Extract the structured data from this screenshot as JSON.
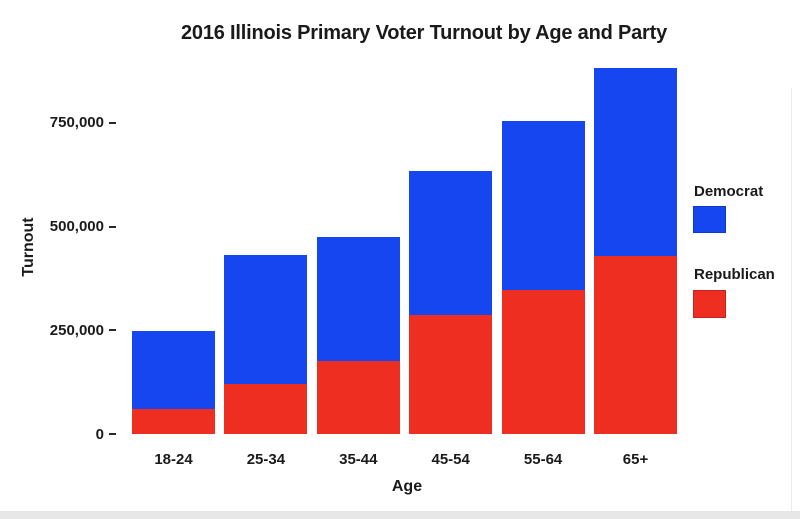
{
  "chart_data": {
    "type": "bar",
    "stacked": true,
    "title": "2016 Illinois Primary Voter Turnout by Age and Party",
    "xlabel": "Age",
    "ylabel": "Turnout",
    "categories": [
      "18-24",
      "25-34",
      "35-44",
      "45-54",
      "55-64",
      "65+"
    ],
    "series": [
      {
        "name": "Republican",
        "color": "#ee2e20",
        "values": [
          60000,
          120000,
          175000,
          287000,
          348000,
          429000
        ]
      },
      {
        "name": "Democrat",
        "color": "#1546ef",
        "values": [
          188000,
          312000,
          300000,
          347000,
          407000,
          453000
        ]
      }
    ],
    "totals": [
      248000,
      432000,
      475000,
      634000,
      755000,
      882000
    ],
    "y_ticks": [
      {
        "value": 0,
        "label": "0"
      },
      {
        "value": 250000,
        "label": "250,000"
      },
      {
        "value": 500000,
        "label": "500,000"
      },
      {
        "value": 750000,
        "label": "750,000"
      }
    ],
    "ylim": [
      0,
      900000
    ],
    "grid": false,
    "legend": {
      "position": "right",
      "entries": [
        {
          "label": "Democrat",
          "color": "#1546ef"
        },
        {
          "label": "Republican",
          "color": "#ee2e20"
        }
      ]
    }
  },
  "page": {
    "background_color": "#ffffff",
    "bottom_band_color": "#e7e7e7",
    "text_color": "#1a1a1a"
  }
}
